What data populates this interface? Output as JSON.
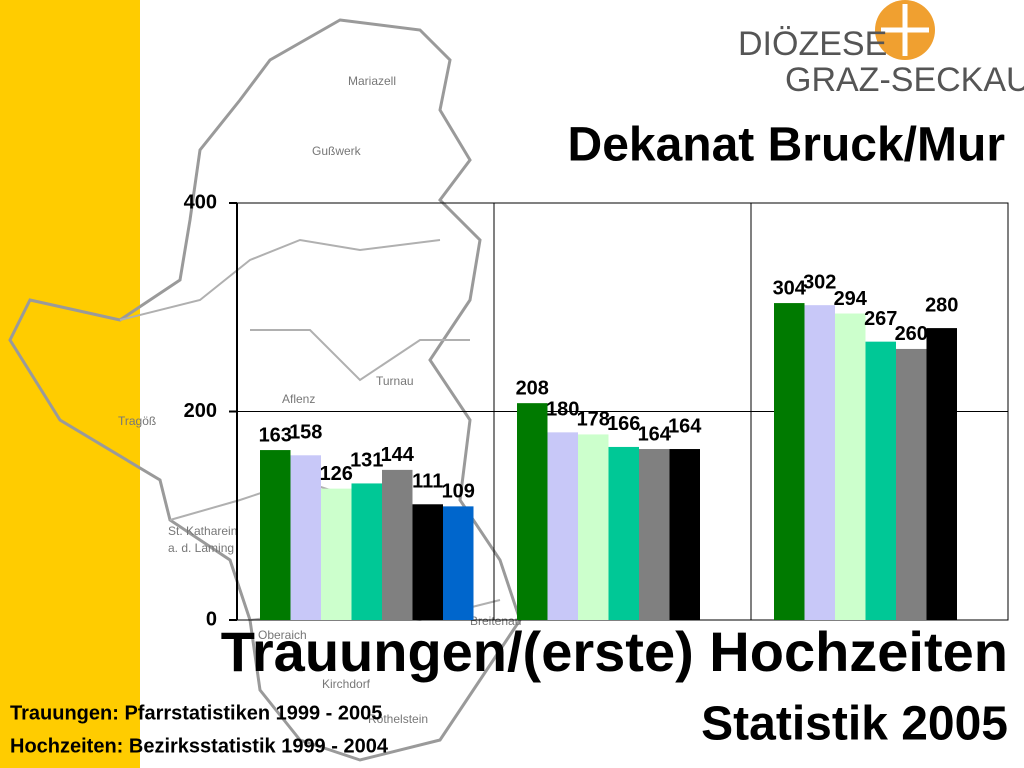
{
  "logo": {
    "line1": "DIÖZESE",
    "line2": "GRAZ-SECKAU"
  },
  "title": "Dekanat Bruck/Mur",
  "subtitle": "Trauungen/(erste) Hochzeiten",
  "subtitle2": "Statistik 2005",
  "notes": [
    "Trauungen: Pfarrstatistiken 1999 - 2005",
    "Hochzeiten: Bezirksstatistik 1999 - 2004"
  ],
  "map_labels": [
    "Mariazell",
    "Gußwerk",
    "Turnau",
    "Aflenz",
    "Tragöß",
    "St. Katharein",
    "a. d. Laming",
    "Breitenau",
    "Oberaich",
    "Kirchdorf",
    "Röthelstein"
  ],
  "chart_data": {
    "type": "bar",
    "categories": [
      null,
      null,
      null
    ],
    "series": [
      {
        "color": "#007a00",
        "values": [
          163,
          208,
          304
        ]
      },
      {
        "color": "#c8c8f8",
        "values": [
          158,
          180,
          302
        ]
      },
      {
        "color": "#ccffcc",
        "values": [
          126,
          178,
          294
        ]
      },
      {
        "color": "#00c896",
        "values": [
          131,
          166,
          267
        ]
      },
      {
        "color": "#808080",
        "values": [
          144,
          164,
          260
        ]
      },
      {
        "color": "#000000",
        "values": [
          111,
          164,
          280
        ]
      },
      {
        "color": "#0066cc",
        "values": [
          109,
          null,
          null
        ]
      }
    ],
    "ylim": [
      0,
      400
    ],
    "yticks": [
      0,
      200,
      400
    ],
    "grid": true
  }
}
